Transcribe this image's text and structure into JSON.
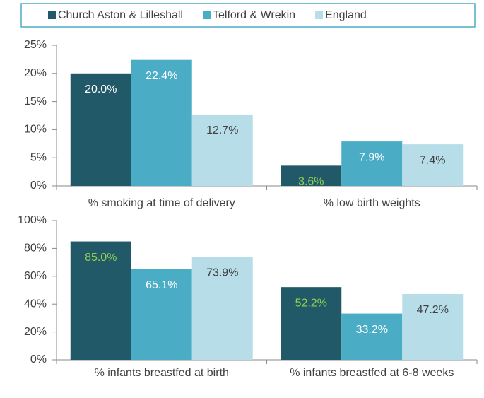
{
  "chart_data": [
    {
      "type": "bar",
      "categories": [
        "% smoking at time of delivery",
        "% low birth weights"
      ],
      "series": [
        {
          "name": "Church Aston & Lilleshall",
          "color": "#215968",
          "values": [
            20.0,
            3.6
          ],
          "value_labels": [
            "20.0%",
            "3.6%"
          ],
          "value_label_colors": [
            "#ffffff",
            "#92d050"
          ]
        },
        {
          "name": "Telford & Wrekin",
          "color": "#4bacc6",
          "values": [
            22.4,
            7.9
          ],
          "value_labels": [
            "22.4%",
            "7.9%"
          ],
          "value_label_colors": [
            "#ffffff",
            "#ffffff"
          ]
        },
        {
          "name": "England",
          "color": "#b7dee8",
          "values": [
            12.7,
            7.4
          ],
          "value_labels": [
            "12.7%",
            "7.4%"
          ],
          "value_label_colors": [
            "#404040",
            "#404040"
          ]
        }
      ],
      "ylim": [
        0,
        25
      ],
      "yticks": [
        {
          "value": 0,
          "label": "0%"
        },
        {
          "value": 5,
          "label": "5%"
        },
        {
          "value": 10,
          "label": "10%"
        },
        {
          "value": 15,
          "label": "15%"
        },
        {
          "value": 20,
          "label": "20%"
        },
        {
          "value": 25,
          "label": "25%"
        }
      ],
      "legend": "top"
    },
    {
      "type": "bar",
      "categories": [
        "% infants breastfed at birth",
        "% infants breastfed at 6-8 weeks"
      ],
      "series": [
        {
          "name": "Church Aston & Lilleshall",
          "color": "#215968",
          "values": [
            85.0,
            52.2
          ],
          "value_labels": [
            "85.0%",
            "52.2%"
          ],
          "value_label_colors": [
            "#92d050",
            "#92d050"
          ]
        },
        {
          "name": "Telford & Wrekin",
          "color": "#4bacc6",
          "values": [
            65.1,
            33.2
          ],
          "value_labels": [
            "65.1%",
            "33.2%"
          ],
          "value_label_colors": [
            "#ffffff",
            "#ffffff"
          ]
        },
        {
          "name": "England",
          "color": "#b7dee8",
          "values": [
            73.9,
            47.2
          ],
          "value_labels": [
            "73.9%",
            "47.2%"
          ],
          "value_label_colors": [
            "#404040",
            "#404040"
          ]
        }
      ],
      "ylim": [
        0,
        100
      ],
      "yticks": [
        {
          "value": 0,
          "label": "0%"
        },
        {
          "value": 20,
          "label": "20%"
        },
        {
          "value": 40,
          "label": "40%"
        },
        {
          "value": 60,
          "label": "60%"
        },
        {
          "value": 80,
          "label": "80%"
        },
        {
          "value": 100,
          "label": "100%"
        }
      ]
    }
  ]
}
